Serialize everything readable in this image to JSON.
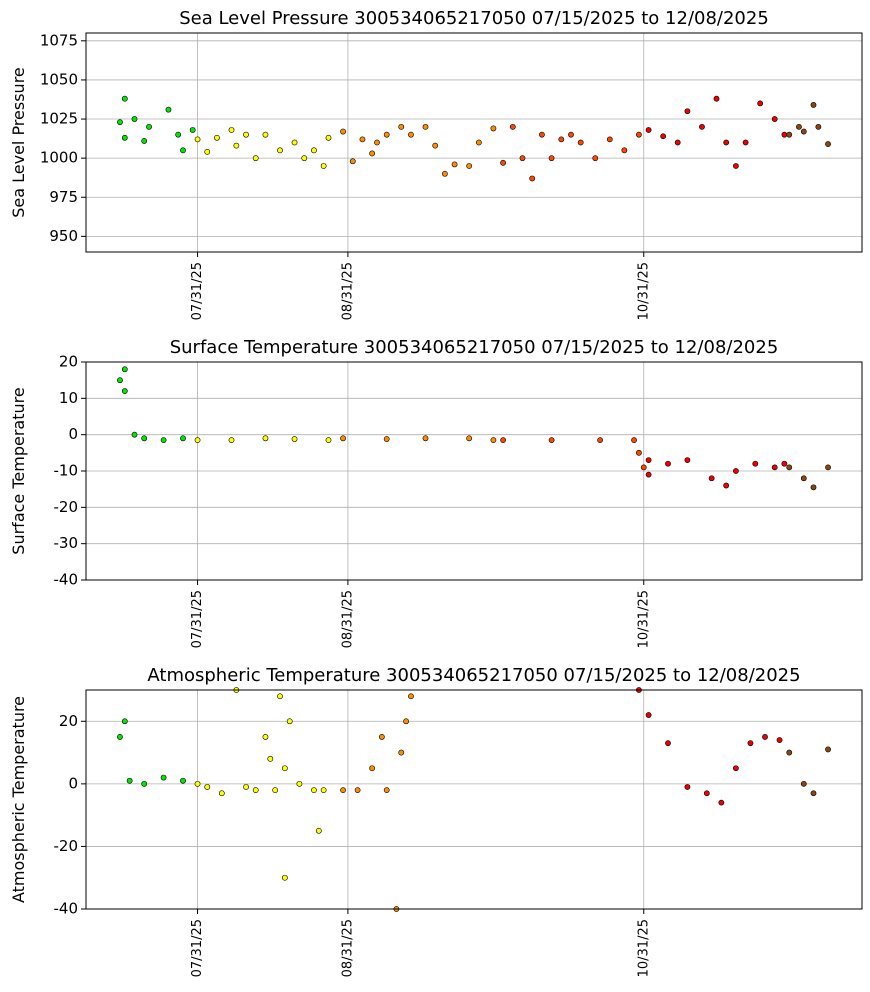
{
  "chart_data": [
    {
      "type": "scatter",
      "title": "Sea Level Pressure 300534065217050  07/15/2025 to 12/08/2025",
      "y_label": "Sea Level Pressure",
      "xlim": [
        "2025-07-08",
        "2025-12-15"
      ],
      "ylim": [
        940,
        1080
      ],
      "yticks": [
        950,
        975,
        1000,
        1025,
        1050,
        1075
      ],
      "xticks": [
        {
          "value": "2025-07-31",
          "label": "07/31/25"
        },
        {
          "value": "2025-08-31",
          "label": "08/31/25"
        },
        {
          "value": "2025-10-31",
          "label": "10/31/25"
        }
      ],
      "grid": true,
      "series": [
        {
          "color": "#00e600",
          "x": [
            "2025-07-15",
            "2025-07-16",
            "2025-07-16",
            "2025-07-18",
            "2025-07-20",
            "2025-07-21",
            "2025-07-25",
            "2025-07-27",
            "2025-07-28",
            "2025-07-30"
          ],
          "values": [
            1023,
            1013,
            1038,
            1025,
            1011,
            1020,
            1031,
            1015,
            1005,
            1018
          ]
        },
        {
          "color": "#ffff00",
          "x": [
            "2025-07-31",
            "2025-08-02",
            "2025-08-04",
            "2025-08-07",
            "2025-08-08",
            "2025-08-10",
            "2025-08-12",
            "2025-08-14",
            "2025-08-17",
            "2025-08-20",
            "2025-08-22",
            "2025-08-24",
            "2025-08-26",
            "2025-08-27"
          ],
          "values": [
            1012,
            1004,
            1013,
            1018,
            1008,
            1015,
            1000,
            1015,
            1005,
            1010,
            1000,
            1005,
            995,
            1013
          ]
        },
        {
          "color": "#ff8c00",
          "x": [
            "2025-08-30",
            "2025-09-01",
            "2025-09-03",
            "2025-09-05",
            "2025-09-06",
            "2025-09-08",
            "2025-09-11",
            "2025-09-13",
            "2025-09-16",
            "2025-09-18",
            "2025-09-20",
            "2025-09-22",
            "2025-09-25",
            "2025-09-27",
            "2025-09-30"
          ],
          "values": [
            1017,
            998,
            1012,
            1003,
            1010,
            1015,
            1020,
            1015,
            1020,
            1008,
            990,
            996,
            995,
            1010,
            1019
          ]
        },
        {
          "color": "#ff4500",
          "x": [
            "2025-10-02",
            "2025-10-04",
            "2025-10-06",
            "2025-10-08",
            "2025-10-10",
            "2025-10-12",
            "2025-10-14",
            "2025-10-16",
            "2025-10-18",
            "2025-10-21",
            "2025-10-24",
            "2025-10-27",
            "2025-10-30"
          ],
          "values": [
            997,
            1020,
            1000,
            987,
            1015,
            1000,
            1012,
            1015,
            1010,
            1000,
            1012,
            1005,
            1015
          ]
        },
        {
          "color": "#ee0000",
          "x": [
            "2025-11-01",
            "2025-11-04",
            "2025-11-07",
            "2025-11-09",
            "2025-11-12",
            "2025-11-15",
            "2025-11-17",
            "2025-11-19",
            "2025-11-21",
            "2025-11-24",
            "2025-11-27",
            "2025-11-29"
          ],
          "values": [
            1018,
            1014,
            1010,
            1030,
            1020,
            1038,
            1010,
            995,
            1010,
            1035,
            1025,
            1015
          ]
        },
        {
          "color": "#8b4513",
          "x": [
            "2025-11-30",
            "2025-12-02",
            "2025-12-03",
            "2025-12-05",
            "2025-12-06",
            "2025-12-08"
          ],
          "values": [
            1015,
            1020,
            1017,
            1034,
            1020,
            1009
          ]
        }
      ]
    },
    {
      "type": "scatter",
      "title": "Surface Temperature 300534065217050  07/15/2025 to 12/08/2025",
      "y_label": "Surface Temperature",
      "xlim": [
        "2025-07-08",
        "2025-12-15"
      ],
      "ylim": [
        -40,
        20
      ],
      "yticks": [
        -40,
        -30,
        -20,
        -10,
        0,
        10,
        20
      ],
      "xticks": [
        {
          "value": "2025-07-31",
          "label": "07/31/25"
        },
        {
          "value": "2025-08-31",
          "label": "08/31/25"
        },
        {
          "value": "2025-10-31",
          "label": "10/31/25"
        }
      ],
      "grid": true,
      "series": [
        {
          "color": "#00e600",
          "x": [
            "2025-07-15",
            "2025-07-16",
            "2025-07-16",
            "2025-07-18",
            "2025-07-20",
            "2025-07-24",
            "2025-07-28"
          ],
          "values": [
            15,
            18,
            12,
            0,
            -1,
            -1.5,
            -1
          ]
        },
        {
          "color": "#ffff00",
          "x": [
            "2025-07-31",
            "2025-08-07",
            "2025-08-14",
            "2025-08-20",
            "2025-08-27"
          ],
          "values": [
            -1.5,
            -1.5,
            -1,
            -1.2,
            -1.5
          ]
        },
        {
          "color": "#ff8c00",
          "x": [
            "2025-08-30",
            "2025-09-08",
            "2025-09-16",
            "2025-09-25",
            "2025-09-30"
          ],
          "values": [
            -1,
            -1.2,
            -1,
            -1,
            -1.5
          ]
        },
        {
          "color": "#ff4500",
          "x": [
            "2025-10-02",
            "2025-10-12",
            "2025-10-22",
            "2025-10-29",
            "2025-10-30",
            "2025-10-31"
          ],
          "values": [
            -1.5,
            -1.5,
            -1.5,
            -1.5,
            -5,
            -9
          ]
        },
        {
          "color": "#ee0000",
          "x": [
            "2025-11-01",
            "2025-11-01",
            "2025-11-05",
            "2025-11-09",
            "2025-11-14",
            "2025-11-17",
            "2025-11-19",
            "2025-11-23",
            "2025-11-27",
            "2025-11-29"
          ],
          "values": [
            -11,
            -7,
            -8,
            -7,
            -12,
            -14,
            -10,
            -8,
            -9,
            -8
          ]
        },
        {
          "color": "#8b4513",
          "x": [
            "2025-11-30",
            "2025-12-03",
            "2025-12-05",
            "2025-12-08"
          ],
          "values": [
            -9,
            -12,
            -14.5,
            -9
          ]
        }
      ]
    },
    {
      "type": "scatter",
      "title": "Atmospheric Temperature 300534065217050  07/15/2025 to 12/08/2025",
      "y_label": "Atmospheric Temperature",
      "xlim": [
        "2025-07-08",
        "2025-12-15"
      ],
      "ylim": [
        -40,
        30
      ],
      "yticks": [
        -40,
        -20,
        0,
        20
      ],
      "xticks": [
        {
          "value": "2025-07-31",
          "label": "07/31/25"
        },
        {
          "value": "2025-08-31",
          "label": "08/31/25"
        },
        {
          "value": "2025-10-31",
          "label": "10/31/25"
        }
      ],
      "grid": true,
      "series": [
        {
          "color": "#00e600",
          "x": [
            "2025-07-15",
            "2025-07-16",
            "2025-07-17",
            "2025-07-20",
            "2025-07-24",
            "2025-07-28"
          ],
          "values": [
            15,
            20,
            1,
            0,
            2,
            1
          ]
        },
        {
          "color": "#ffff00",
          "x": [
            "2025-07-31",
            "2025-08-02",
            "2025-08-05",
            "2025-08-08",
            "2025-08-10",
            "2025-08-12",
            "2025-08-14",
            "2025-08-15",
            "2025-08-16",
            "2025-08-17",
            "2025-08-18",
            "2025-08-18",
            "2025-08-19",
            "2025-08-21",
            "2025-08-24",
            "2025-08-25",
            "2025-08-26"
          ],
          "values": [
            0,
            -1,
            -3,
            30,
            -1,
            -2,
            15,
            8,
            -2,
            28,
            5,
            -30,
            20,
            0,
            -2,
            -15,
            -2
          ]
        },
        {
          "color": "#ff8c00",
          "x": [
            "2025-08-30",
            "2025-09-02",
            "2025-09-05",
            "2025-09-07",
            "2025-09-08",
            "2025-09-10",
            "2025-09-11",
            "2025-09-12",
            "2025-09-13"
          ],
          "values": [
            -2,
            -2,
            5,
            15,
            -2,
            -40,
            10,
            20,
            28
          ]
        },
        {
          "color": "#ee0000",
          "x": [
            "2025-10-30",
            "2025-11-01",
            "2025-11-05",
            "2025-11-09",
            "2025-11-13",
            "2025-11-16",
            "2025-11-19",
            "2025-11-22",
            "2025-11-25",
            "2025-11-28"
          ],
          "values": [
            30,
            22,
            13,
            -1,
            -3,
            -6,
            5,
            13,
            15,
            14
          ]
        },
        {
          "color": "#8b4513",
          "x": [
            "2025-11-30",
            "2025-12-03",
            "2025-12-05",
            "2025-12-08"
          ],
          "values": [
            10,
            0,
            -3,
            11
          ]
        }
      ]
    }
  ]
}
